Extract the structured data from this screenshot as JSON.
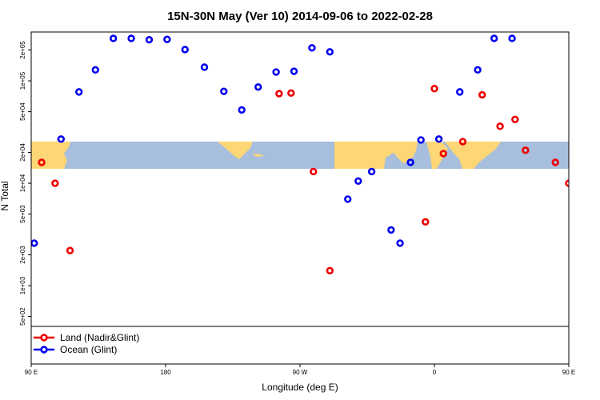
{
  "chart_data": {
    "type": "scatter",
    "title": "15N-30N May (Ver 10)   2014-09-06 to 2022-02-28",
    "xlabel": "Longitude (deg E)",
    "ylabel": "N Total",
    "xlim": [
      90,
      450
    ],
    "ylog": true,
    "ylim": [
      500,
      350000
    ],
    "x_ticks": [
      {
        "value": 90,
        "label": "90 E"
      },
      {
        "value": 180,
        "label": "180"
      },
      {
        "value": 270,
        "label": "90 W"
      },
      {
        "value": 360,
        "label": "0"
      },
      {
        "value": 450,
        "label": "90 E"
      },
      {
        "value": 540,
        "label": "180"
      }
    ],
    "y_ticks": [
      {
        "value": 500,
        "label": "5e+02"
      },
      {
        "value": 1000,
        "label": "1e+03"
      },
      {
        "value": 2000,
        "label": "2e+03"
      },
      {
        "value": 5000,
        "label": "5e+03"
      },
      {
        "value": 10000,
        "label": "1e+04"
      },
      {
        "value": 20000,
        "label": "2e+04"
      },
      {
        "value": 50000,
        "label": "5e+04"
      },
      {
        "value": 100000,
        "label": "1e+05"
      },
      {
        "value": 200000,
        "label": "2e+05"
      }
    ],
    "legend": {
      "placement": "bottom-left"
    },
    "series": [
      {
        "name": "Land (Nadir&Glint)",
        "color": "#ee0000",
        "points": [
          {
            "x": 97,
            "y": 16000
          },
          {
            "x": 106,
            "y": 10000
          },
          {
            "x": 116,
            "y": 2200
          },
          {
            "x": 256,
            "y": 75000
          },
          {
            "x": 264,
            "y": 76000
          },
          {
            "x": 279,
            "y": 13000
          },
          {
            "x": 290,
            "y": 1400
          },
          {
            "x": 354,
            "y": 4200
          },
          {
            "x": 360,
            "y": 84000
          },
          {
            "x": 366,
            "y": 19500
          },
          {
            "x": 379,
            "y": 25500
          },
          {
            "x": 392,
            "y": 73000
          },
          {
            "x": 404,
            "y": 36000
          },
          {
            "x": 414,
            "y": 42000
          },
          {
            "x": 421,
            "y": 21000
          },
          {
            "x": 441,
            "y": 16000
          },
          {
            "x": 450,
            "y": 10000
          },
          {
            "x": 459,
            "y": 2200
          },
          {
            "x": 180,
            "y": 415
          }
        ]
      },
      {
        "name": "Ocean (Glint)",
        "color": "#0000ee",
        "points": [
          {
            "x": 92,
            "y": 2600
          },
          {
            "x": 110,
            "y": 27000
          },
          {
            "x": 122,
            "y": 78000
          },
          {
            "x": 133,
            "y": 128000
          },
          {
            "x": 145,
            "y": 260000
          },
          {
            "x": 157,
            "y": 260000
          },
          {
            "x": 169,
            "y": 252000
          },
          {
            "x": 181,
            "y": 254000
          },
          {
            "x": 193,
            "y": 202000
          },
          {
            "x": 206,
            "y": 136000
          },
          {
            "x": 219,
            "y": 79000
          },
          {
            "x": 231,
            "y": 52000
          },
          {
            "x": 242,
            "y": 87000
          },
          {
            "x": 254,
            "y": 122000
          },
          {
            "x": 266,
            "y": 124000
          },
          {
            "x": 278,
            "y": 210000
          },
          {
            "x": 290,
            "y": 192000
          },
          {
            "x": 302,
            "y": 7000
          },
          {
            "x": 309,
            "y": 10500
          },
          {
            "x": 318,
            "y": 13000
          },
          {
            "x": 331,
            "y": 3500
          },
          {
            "x": 337,
            "y": 2600
          },
          {
            "x": 344,
            "y": 16000
          },
          {
            "x": 351,
            "y": 26500
          },
          {
            "x": 363,
            "y": 27000
          },
          {
            "x": 377,
            "y": 78000
          },
          {
            "x": 389,
            "y": 128000
          },
          {
            "x": 400,
            "y": 260000
          },
          {
            "x": 412,
            "y": 260000
          }
        ]
      }
    ]
  }
}
